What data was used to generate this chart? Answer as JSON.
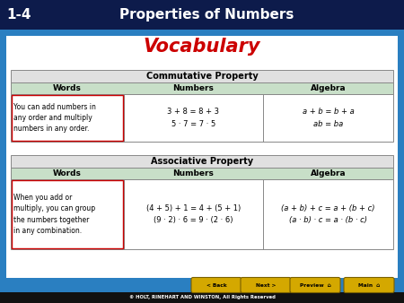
{
  "header_number": "1-4",
  "header_title": "Properties of Numbers",
  "vocab_title": "Vocabulary",
  "header_bg": "#0d1b4b",
  "header_text_color": "#ffffff",
  "vocab_color": "#cc0000",
  "slide_bg": "#2a7fc1",
  "table_bg": "#ffffff",
  "table_title_bg": "#e0e0e0",
  "table_header_bg": "#c8dfc8",
  "table_border_color": "#888888",
  "red_box_color": "#cc0000",
  "footer_bg": "#111111",
  "footer_text": "© HOLT, RINEHART AND WINSTON, All Rights Reserved",
  "commutative": {
    "title": "Commutative Property",
    "col_headers": [
      "Words",
      "Numbers",
      "Algebra"
    ],
    "words": "You can add numbers in\nany order and multiply\nnumbers in any order.",
    "numbers": "3 + 8 = 8 + 3\n5 · 7 = 7 · 5",
    "algebra": "a + b = b + a\nab = ba"
  },
  "associative": {
    "title": "Associative Property",
    "col_headers": [
      "Words",
      "Numbers",
      "Algebra"
    ],
    "words": "When you add or\nmultiply, you can group\nthe numbers together\nin any combination.",
    "numbers": "(4 + 5) + 1 = 4 + (5 + 1)\n(9 · 2) · 6 = 9 · (2 · 6)",
    "algebra": "(a + b) + c = a + (b + c)\n(a · b) · c = a · (b · c)"
  },
  "nav_buttons": [
    "< Back",
    "Next >",
    "Preview  ⌂",
    "Main  ⌂"
  ],
  "nav_bg": "#d4a800",
  "nav_border": "#7a6000"
}
